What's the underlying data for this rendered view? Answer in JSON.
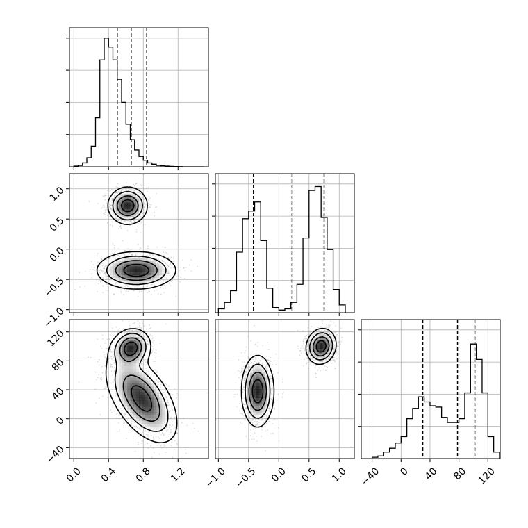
{
  "chart_data": {
    "type": "corner",
    "grid": true,
    "colors": {
      "hist": "#000000",
      "quantile": "#000000",
      "grid": "#b0b0b0",
      "density": "#000000",
      "scatter": "#9a9a9a"
    },
    "parameters": [
      {
        "range": [
          -0.05,
          1.55
        ],
        "ticks": [
          0.0,
          0.4,
          0.8,
          1.2
        ],
        "tick_labels": [
          "0.0",
          "0.4",
          "0.8",
          "1.2"
        ],
        "quantiles": [
          0.5,
          0.66,
          0.84
        ]
      },
      {
        "range": [
          -1.05,
          1.25
        ],
        "ticks": [
          -1.0,
          -0.5,
          0.0,
          0.5,
          1.0
        ],
        "tick_labels": [
          "−1.0",
          "−0.5",
          "0.0",
          "0.5",
          "1.0"
        ],
        "quantiles": [
          -0.42,
          0.22,
          0.75
        ]
      },
      {
        "range": [
          -55,
          137
        ],
        "ticks": [
          -40,
          0,
          40,
          80,
          120
        ],
        "tick_labels": [
          "−40",
          "0",
          "40",
          "80",
          "120"
        ],
        "quantiles": [
          30,
          78,
          102
        ]
      }
    ],
    "histograms": [
      {
        "param": 0,
        "bin_edges": [
          0.0,
          0.05,
          0.1,
          0.15,
          0.2,
          0.25,
          0.3,
          0.35,
          0.4,
          0.45,
          0.5,
          0.55,
          0.6,
          0.65,
          0.7,
          0.75,
          0.8,
          0.85,
          0.9,
          0.95,
          1.0,
          1.05,
          1.1,
          1.15,
          1.2,
          1.25,
          1.3,
          1.35,
          1.4,
          1.45,
          1.5
        ],
        "counts": [
          0.005,
          0.01,
          0.03,
          0.07,
          0.16,
          0.38,
          0.83,
          1.0,
          0.93,
          0.83,
          0.68,
          0.5,
          0.33,
          0.21,
          0.13,
          0.08,
          0.05,
          0.03,
          0.02,
          0.01,
          0.008,
          0.005,
          0.003,
          0.002,
          0.001,
          0,
          0,
          0,
          0,
          0
        ]
      },
      {
        "param": 1,
        "bin_edges": [
          -1.0,
          -0.9,
          -0.8,
          -0.7,
          -0.6,
          -0.5,
          -0.4,
          -0.3,
          -0.2,
          -0.1,
          0.0,
          0.1,
          0.2,
          0.3,
          0.4,
          0.5,
          0.6,
          0.7,
          0.8,
          0.9,
          1.0,
          1.1
        ],
        "counts": [
          0.03,
          0.08,
          0.17,
          0.47,
          0.73,
          0.79,
          0.86,
          0.56,
          0.19,
          0.04,
          0.02,
          0.03,
          0.08,
          0.22,
          0.58,
          0.95,
          0.98,
          0.74,
          0.49,
          0.18,
          0.06
        ]
      },
      {
        "param": 2,
        "bin_edges": [
          -40,
          -32,
          -24,
          -16,
          -8,
          0,
          8,
          16,
          24,
          32,
          40,
          48,
          56,
          64,
          72,
          80,
          88,
          96,
          104,
          112,
          120,
          128,
          136
        ],
        "counts": [
          0.01,
          0.02,
          0.05,
          0.08,
          0.12,
          0.17,
          0.31,
          0.39,
          0.48,
          0.44,
          0.41,
          0.4,
          0.32,
          0.28,
          0.28,
          0.31,
          0.51,
          0.89,
          0.77,
          0.51,
          0.17,
          0.05
        ]
      }
    ],
    "pairs": [
      {
        "x": 1,
        "y": 0,
        "modes": [
          {
            "x": 0.62,
            "y": 0.72,
            "sx": 0.11,
            "sy": 0.15,
            "rho": 0.0,
            "w": 0.5
          },
          {
            "x": 0.72,
            "y": -0.35,
            "sx": 0.22,
            "sy": 0.15,
            "rho": 0.0,
            "w": 0.5
          }
        ]
      },
      {
        "x": 2,
        "y": 0,
        "modes": [
          {
            "x": 0.66,
            "y": 98,
            "sx": 0.11,
            "sy": 13,
            "rho": 0.1,
            "w": 0.5
          },
          {
            "x": 0.78,
            "y": 28,
            "sx": 0.2,
            "sy": 30,
            "rho": -0.55,
            "w": 0.5
          }
        ]
      },
      {
        "x": 2,
        "y": 1,
        "modes": [
          {
            "x": 0.7,
            "y": 100,
            "sx": 0.12,
            "sy": 12,
            "rho": 0.1,
            "w": 0.5
          },
          {
            "x": -0.35,
            "y": 38,
            "sx": 0.13,
            "sy": 24,
            "rho": 0.0,
            "w": 0.5
          }
        ]
      }
    ]
  }
}
